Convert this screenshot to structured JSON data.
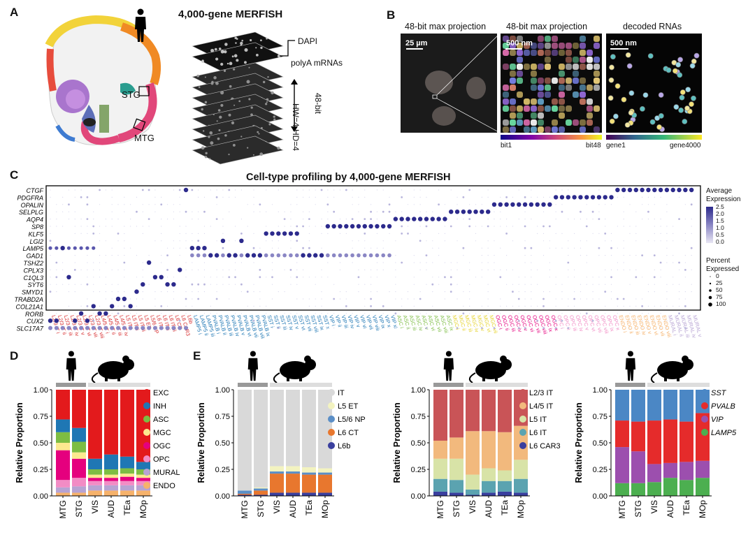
{
  "panels": {
    "A": {
      "letter": "A",
      "title": "4,000-gene MERFISH",
      "stack_labels": [
        "DAPI",
        "polyA mRNAs"
      ],
      "bit_label": "48-bit",
      "hwhd_label": "HW=4 HD=4",
      "regions": [
        "STG",
        "MTG"
      ]
    },
    "B": {
      "letter": "B",
      "image_titles": [
        "48-bit max projection",
        "48-bit max projection",
        "decoded RNAs"
      ],
      "scalebars": [
        "25 µm",
        "500 nm",
        "500 nm"
      ],
      "colorbar1": {
        "left": "bit1",
        "right": "bit48"
      },
      "colorbar2": {
        "left": "gene1",
        "right": "gene4000"
      }
    },
    "C": {
      "letter": "C",
      "title": "Cell-type profiling by 4,000-gene MERFISH",
      "legend_avg_title": "Average\nExpression",
      "legend_avg_ticks": [
        "2.5",
        "2.0",
        "1.5",
        "1.0",
        "0.5",
        "0.0"
      ],
      "legend_pct_title": "Percent\nExpressed",
      "legend_pct_ticks": [
        "0",
        "25",
        "50",
        "75",
        "100"
      ]
    },
    "D": {
      "letter": "D",
      "legend": [
        "EXC",
        "INH",
        "ASC",
        "MGC",
        "OGC",
        "OPC",
        "MURAL",
        "ENDO"
      ]
    },
    "E": {
      "letter": "E"
    }
  },
  "chart_data": [
    {
      "type": "heatmap",
      "id": "C",
      "title": "Cell-type profiling by 4,000-gene MERFISH",
      "genes": [
        "CTGF",
        "PDGFRA",
        "OPALIN",
        "SELPLG",
        "AQP4",
        "SP8",
        "KLF5",
        "LGI2",
        "LAMP5",
        "GAD1",
        "TSHZ2",
        "CPLX3",
        "C1QL3",
        "SYT6",
        "SMYD1",
        "TRABD2A",
        "COL21A1",
        "RORB",
        "CUX2",
        "SLC17A7"
      ],
      "groups": [
        {
          "name": "EXC",
          "color": "#d62728",
          "labels": [
            "L2/3 IT i",
            "L2/3 IT ii",
            "L2/3 IT iii",
            "L2/3 IT iv",
            "L2/3 IT v",
            "L2/3 IT vi",
            "L2/3 IT vii",
            "L2/3 IT viii",
            "L4/5 IT i",
            "L4/5 IT ii",
            "L4/5 IT iii",
            "L4/5 IT iv",
            "L5 IT i",
            "L5 IT ii",
            "L5 IT iii",
            "L5 ET",
            "L5/6 NP",
            "L6 IT i",
            "L6 IT ii",
            "L6 IT iii",
            "L6 CT",
            "L6 CAR3",
            "L6b"
          ],
          "markers": [
            "CUX2",
            "CUX2",
            "LAMP5",
            "C1QL3",
            "CUX2",
            "RORB",
            "CUX2",
            "COL21A1",
            "RORB",
            "RORB",
            "COL21A1",
            "TRABD2A",
            "TRABD2A",
            "COL21A1",
            "SMYD1",
            "SYT6",
            "TSHZ2",
            "C1QL3",
            "C1QL3",
            "SYT6",
            "SYT6",
            "CPLX3",
            "CTGF"
          ]
        },
        {
          "name": "INH",
          "color": "#1f77b4",
          "labels": [
            "LAMP5 i",
            "LAMP5 ii",
            "LAMP5 iii",
            "PVALB i",
            "PVALB ii",
            "PVALB iii",
            "PVALB iv",
            "PVALB v",
            "PVALB vi",
            "PVALB vii",
            "PVALB viii",
            "PVALB ix",
            "SST i",
            "SST ii",
            "SST iii",
            "SST iv",
            "SST v",
            "SST vi",
            "SST vii",
            "SST viii",
            "SST ix",
            "SST x",
            "VIP i",
            "VIP ii",
            "VIP iii",
            "VIP iv",
            "VIP v",
            "VIP vi",
            "VIP vii",
            "VIP viii",
            "VIP ix",
            "VIP x",
            "VIP xi"
          ],
          "markers": [
            "LAMP5",
            "LAMP5",
            "LAMP5",
            "GAD1",
            "GAD1",
            "LGI2",
            "GAD1",
            "GAD1",
            "LGI2",
            "GAD1",
            "GAD1",
            "GAD1",
            "KLF5",
            "KLF5",
            "KLF5",
            "KLF5",
            "KLF5",
            "KLF5",
            "GAD1",
            "GAD1",
            "GAD1",
            "GAD1",
            "SP8",
            "SP8",
            "SP8",
            "SP8",
            "SP8",
            "SP8",
            "SP8",
            "SP8",
            "SP8",
            "SP8",
            "SP8"
          ]
        },
        {
          "name": "ASC",
          "color": "#7dbd43",
          "labels": [
            "ASC i",
            "ASC ii",
            "ASC iii",
            "ASC iv",
            "ASC v",
            "ASC vi",
            "ASC vii",
            "ASC viii",
            "ASC ix"
          ],
          "markers": [
            "AQP4",
            "AQP4",
            "AQP4",
            "AQP4",
            "AQP4",
            "AQP4",
            "AQP4",
            "AQP4",
            "AQP4"
          ]
        },
        {
          "name": "MGC",
          "color": "#e6d32a",
          "labels": [
            "MGC i",
            "MGC ii",
            "MGC iii",
            "MGC iv",
            "MGC v",
            "MGC vi",
            "MGC vii"
          ],
          "markers": [
            "SELPLG",
            "SELPLG",
            "SELPLG",
            "SELPLG",
            "SELPLG",
            "SELPLG",
            "SELPLG"
          ]
        },
        {
          "name": "OGC",
          "color": "#e5007e",
          "labels": [
            "OGC i",
            "OGC ii",
            "OGC iii",
            "OGC iv",
            "OGC v",
            "OGC vi",
            "OGC vii",
            "OGC viii",
            "OGC ix",
            "OGC x"
          ],
          "markers": [
            "OPALIN",
            "OPALIN",
            "OPALIN",
            "OPALIN",
            "OPALIN",
            "OPALIN",
            "OPALIN",
            "OPALIN",
            "OPALIN",
            "OPALIN"
          ]
        },
        {
          "name": "OPC",
          "color": "#f28cc5",
          "labels": [
            "OPC i",
            "OPC ii",
            "OPC iii",
            "OPC iv",
            "OPC v",
            "OPC vi",
            "OPC vii",
            "OPC viii",
            "OPC ix",
            "OPC x"
          ],
          "markers": [
            "PDGFRA",
            "PDGFRA",
            "PDGFRA",
            "PDGFRA",
            "PDGFRA",
            "PDGFRA",
            "PDGFRA",
            "PDGFRA",
            "PDGFRA",
            "PDGFRA"
          ]
        },
        {
          "name": "ENDO",
          "color": "#f6b26b",
          "labels": [
            "ENDO i",
            "ENDO ii",
            "ENDO iii",
            "ENDO iv",
            "ENDO v",
            "ENDO vi",
            "ENDO vii",
            "ENDO viii"
          ],
          "markers": [
            "CTGF",
            "CTGF",
            "CTGF",
            "CTGF",
            "CTGF",
            "CTGF",
            "CTGF",
            "CTGF"
          ]
        },
        {
          "name": "MURAL",
          "color": "#b7a3d3",
          "labels": [
            "MURAL i",
            "MURAL ii",
            "MURAL iii",
            "MURAL iv",
            "MURAL v"
          ],
          "markers": [
            "CTGF",
            "CTGF",
            "CTGF",
            "CTGF",
            "CTGF"
          ]
        }
      ]
    },
    {
      "type": "bar",
      "id": "D",
      "stacked": true,
      "categories": [
        "MTG",
        "STG",
        "VIS",
        "AUD",
        "TEa",
        "MOp"
      ],
      "ylabel": "Relative Proportion",
      "ylim": [
        0,
        1
      ],
      "yticks": [
        "0.00",
        "0.25",
        "0.50",
        "0.75",
        "1.00"
      ],
      "series": [
        {
          "name": "ENDO",
          "color": "#f6b26b",
          "values": [
            0.03,
            0.03,
            0.05,
            0.05,
            0.05,
            0.05
          ]
        },
        {
          "name": "MURAL",
          "color": "#b7a3d3",
          "values": [
            0.05,
            0.06,
            0.05,
            0.05,
            0.05,
            0.05
          ]
        },
        {
          "name": "OPC",
          "color": "#f28cc5",
          "values": [
            0.07,
            0.08,
            0.04,
            0.04,
            0.04,
            0.04
          ]
        },
        {
          "name": "OGC",
          "color": "#e5007e",
          "values": [
            0.28,
            0.18,
            0.03,
            0.03,
            0.04,
            0.03
          ]
        },
        {
          "name": "MGC",
          "color": "#fce98f",
          "values": [
            0.07,
            0.06,
            0.03,
            0.03,
            0.03,
            0.03
          ]
        },
        {
          "name": "ASC",
          "color": "#7dbd43",
          "values": [
            0.1,
            0.1,
            0.05,
            0.05,
            0.05,
            0.05
          ]
        },
        {
          "name": "INH",
          "color": "#1f77b4",
          "values": [
            0.12,
            0.13,
            0.1,
            0.14,
            0.11,
            0.07
          ]
        },
        {
          "name": "EXC",
          "color": "#e31a1c",
          "values": [
            0.28,
            0.36,
            0.65,
            0.61,
            0.63,
            0.68
          ]
        }
      ]
    },
    {
      "type": "bar",
      "id": "E1",
      "stacked": true,
      "categories": [
        "MTG",
        "STG",
        "VIS",
        "AUD",
        "TEa",
        "MOp"
      ],
      "ylabel": "Relative Proportion",
      "ylim": [
        0,
        1
      ],
      "yticks": [
        "0.00",
        "0.25",
        "0.50",
        "0.75",
        "1.00"
      ],
      "series": [
        {
          "name": "L6b",
          "color": "#3a3f9e",
          "values": [
            0.01,
            0.01,
            0.03,
            0.03,
            0.03,
            0.03
          ]
        },
        {
          "name": "L6 CT",
          "color": "#e8772e",
          "values": [
            0.01,
            0.04,
            0.18,
            0.18,
            0.17,
            0.17
          ]
        },
        {
          "name": "L5/6 NP",
          "color": "#5b8fc7",
          "values": [
            0.03,
            0.02,
            0.02,
            0.02,
            0.02,
            0.02
          ]
        },
        {
          "name": "L5 ET",
          "color": "#f3f3c0",
          "values": [
            0.0,
            0.01,
            0.05,
            0.05,
            0.05,
            0.04
          ]
        },
        {
          "name": "IT",
          "color": "#d9d9d9",
          "values": [
            0.95,
            0.92,
            0.72,
            0.72,
            0.73,
            0.74
          ]
        }
      ],
      "legend": [
        "IT",
        "L5 ET",
        "L5/6 NP",
        "L6 CT",
        "L6b"
      ]
    },
    {
      "type": "bar",
      "id": "E2",
      "stacked": true,
      "categories": [
        "MTG",
        "STG",
        "VIS",
        "AUD",
        "TEa",
        "MOp"
      ],
      "ylabel": "Relative Proportion",
      "ylim": [
        0,
        1
      ],
      "yticks": [
        "0.00",
        "0.25",
        "0.50",
        "0.75",
        "1.00"
      ],
      "series": [
        {
          "name": "L6 CAR3",
          "color": "#3a3f9e",
          "values": [
            0.04,
            0.03,
            0.01,
            0.03,
            0.04,
            0.03
          ]
        },
        {
          "name": "L6 IT",
          "color": "#5ba3b0",
          "values": [
            0.12,
            0.12,
            0.05,
            0.11,
            0.1,
            0.13
          ]
        },
        {
          "name": "L5 IT",
          "color": "#d8e3a7",
          "values": [
            0.19,
            0.2,
            0.14,
            0.12,
            0.1,
            0.18
          ]
        },
        {
          "name": "L4/5 IT",
          "color": "#f2b97d",
          "values": [
            0.17,
            0.2,
            0.41,
            0.35,
            0.36,
            0.32
          ]
        },
        {
          "name": "L2/3 IT",
          "color": "#c95457",
          "values": [
            0.48,
            0.45,
            0.39,
            0.39,
            0.4,
            0.34
          ]
        }
      ],
      "legend": [
        "L2/3 IT",
        "L4/5 IT",
        "L5 IT",
        "L6 IT",
        "L6 CAR3"
      ]
    },
    {
      "type": "bar",
      "id": "E3",
      "stacked": true,
      "categories": [
        "MTG",
        "STG",
        "VIS",
        "AUD",
        "TEa",
        "MOp"
      ],
      "ylabel": "Relative Proportion",
      "ylim": [
        0,
        1
      ],
      "yticks": [
        "0.00",
        "0.25",
        "0.50",
        "0.75",
        "1.00"
      ],
      "series": [
        {
          "name": "LAMP5",
          "color": "#4caf50",
          "values": [
            0.12,
            0.12,
            0.13,
            0.17,
            0.15,
            0.17
          ]
        },
        {
          "name": "VIP",
          "color": "#9c4fae",
          "values": [
            0.34,
            0.3,
            0.17,
            0.14,
            0.17,
            0.16
          ]
        },
        {
          "name": "PVALB",
          "color": "#e52b2b",
          "values": [
            0.25,
            0.28,
            0.41,
            0.41,
            0.38,
            0.45
          ]
        },
        {
          "name": "SST",
          "color": "#4b87c5",
          "values": [
            0.29,
            0.3,
            0.29,
            0.28,
            0.3,
            0.22
          ]
        }
      ],
      "legend": [
        "SST",
        "PVALB",
        "VIP",
        "LAMP5"
      ]
    }
  ]
}
